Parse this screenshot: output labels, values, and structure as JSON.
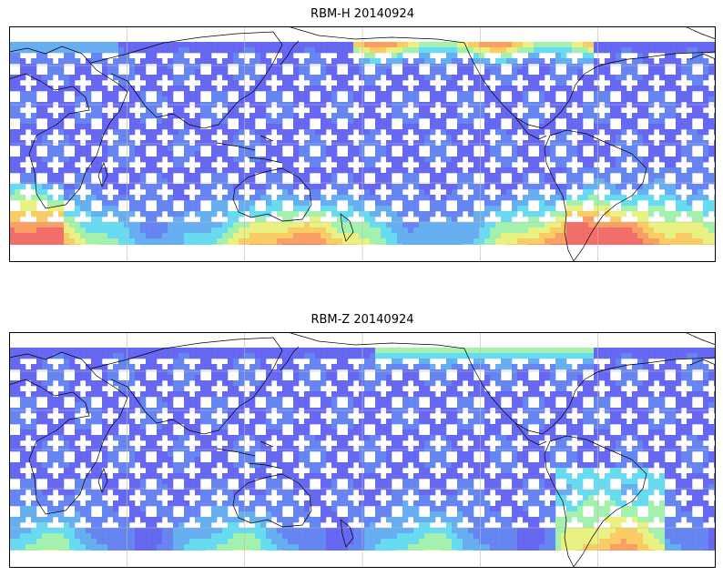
{
  "panels": [
    {
      "title": "RBM-H 20140924",
      "variant": "H"
    },
    {
      "title": "RBM-Z 20140924",
      "variant": "Z"
    }
  ],
  "colormap": [
    "#5a5cf0",
    "#5a7cf0",
    "#5aa8f0",
    "#5cd8f0",
    "#9cf0a8",
    "#e8f078",
    "#f8c858",
    "#f89858",
    "#f06460"
  ],
  "background": "#ffffff",
  "grid_color": "#bcbcbc",
  "coast_color": "#000000"
}
